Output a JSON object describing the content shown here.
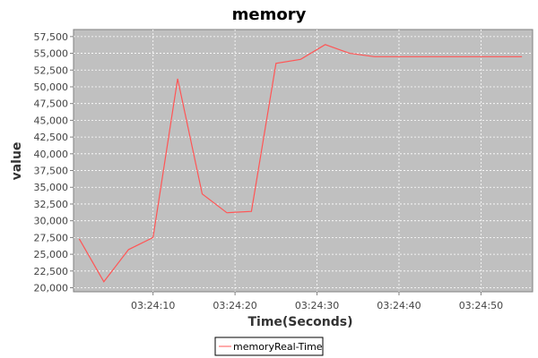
{
  "chart_data": {
    "type": "line",
    "title": "memory",
    "xlabel": "Time(Seconds)",
    "ylabel": "value",
    "x_tick_labels": [
      "03:24:10",
      "03:24:20",
      "03:24:30",
      "03:24:40",
      "03:24:50"
    ],
    "x_tick_values": [
      10,
      20,
      30,
      40,
      50
    ],
    "y_tick_labels": [
      "20,000",
      "22,500",
      "25,000",
      "27,500",
      "30,000",
      "32,500",
      "35,000",
      "37,500",
      "40,000",
      "42,500",
      "45,000",
      "47,500",
      "50,000",
      "52,500",
      "55,000",
      "57,500"
    ],
    "y_tick_values": [
      20000,
      22500,
      25000,
      27500,
      30000,
      32500,
      35000,
      37500,
      40000,
      42500,
      45000,
      47500,
      50000,
      52500,
      55000,
      57500
    ],
    "xlim": [
      0.3,
      56.3
    ],
    "ylim": [
      19400,
      58550
    ],
    "series": [
      {
        "name": "memoryReal-Time",
        "color": "#ff5555",
        "x": [
          1,
          4,
          7,
          10,
          13,
          16,
          19,
          22,
          25,
          28,
          31,
          34,
          37,
          40,
          43,
          46,
          49,
          52,
          55
        ],
        "values": [
          27300,
          20900,
          25700,
          27500,
          51200,
          34000,
          31200,
          31400,
          53500,
          54100,
          56300,
          55000,
          54500,
          54500,
          54500,
          54500,
          54500,
          54500,
          54500
        ]
      }
    ],
    "grid": true,
    "legend_position": "bottom"
  }
}
